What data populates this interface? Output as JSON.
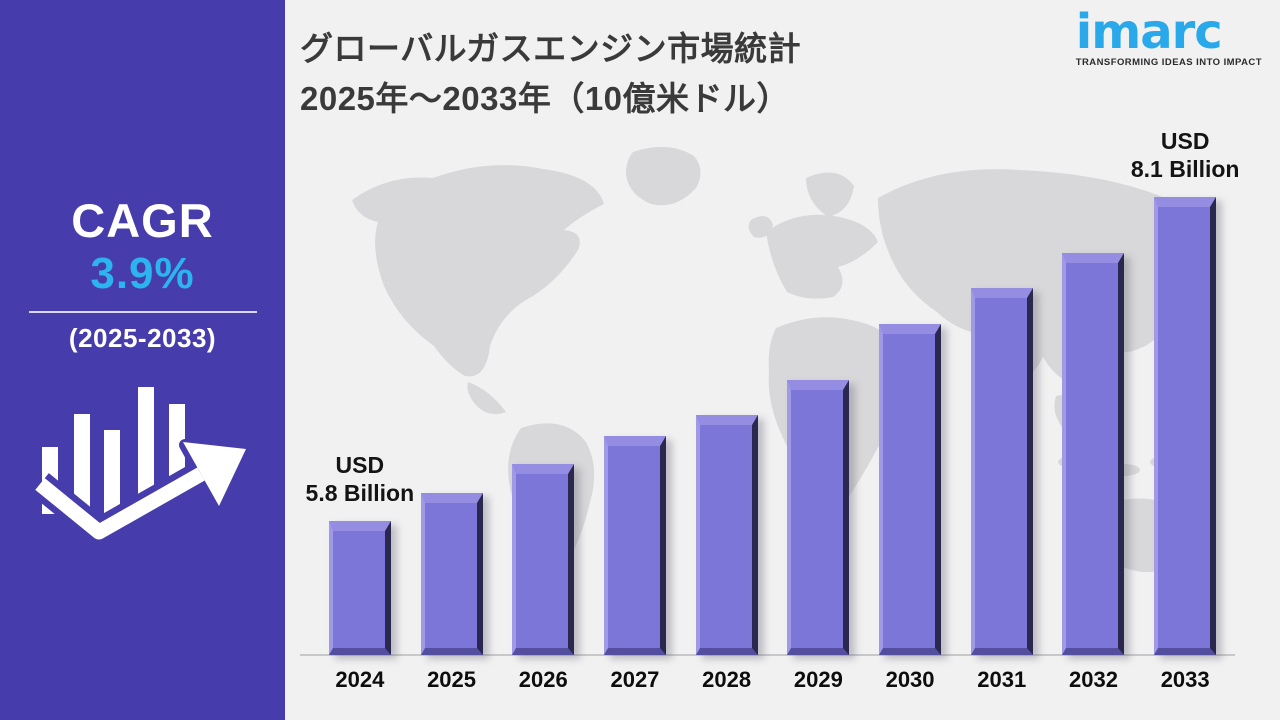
{
  "sidebar": {
    "bg_color": "#473cac",
    "cagr_label": "CAGR",
    "cagr_value": "3.9%",
    "cagr_value_color": "#2cb4f0",
    "period": "(2025-2033)",
    "icon": "growth-trend-icon"
  },
  "header": {
    "title_line1": "グローバルガスエンジン市場統計",
    "title_line2": "2025年〜2033年（10億米ドル）"
  },
  "logo": {
    "name": "imarc",
    "tagline": "TRANSFORMING IDEAS INTO IMPACT",
    "brand_color": "#29a9e9"
  },
  "chart_data": {
    "type": "bar",
    "title": "グローバルガスエンジン市場統計 2025年〜2033年（10億米ドル）",
    "unit": "USD Billion",
    "categories": [
      "2024",
      "2025",
      "2026",
      "2027",
      "2028",
      "2029",
      "2030",
      "2031",
      "2032",
      "2033"
    ],
    "values": [
      5.8,
      6.0,
      6.2,
      6.4,
      6.55,
      6.8,
      7.2,
      7.45,
      7.7,
      8.1
    ],
    "callouts": [
      {
        "index": 0,
        "line1": "USD",
        "line2": "5.8 Billion"
      },
      {
        "index": 9,
        "line1": "USD",
        "line2": "8.1 Billion"
      }
    ],
    "bar_color": "#7c76d8",
    "background_map_color": "#d8d8da",
    "gridlines": false,
    "y_axis_visible": false,
    "legend": false,
    "cagr_annotation": "3.9% (2025-2033)"
  }
}
